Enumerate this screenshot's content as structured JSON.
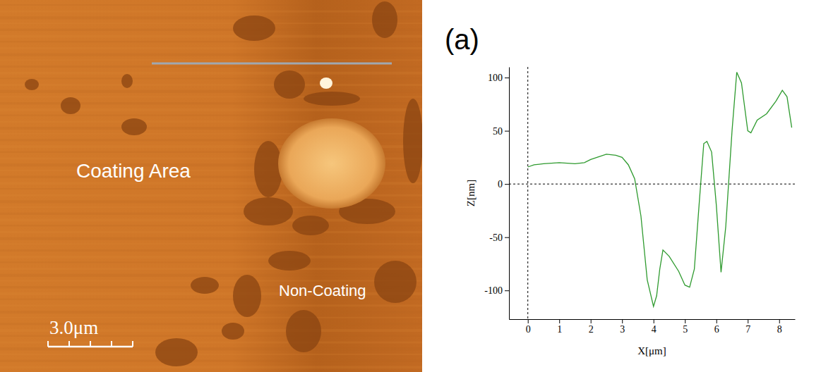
{
  "image": {
    "labels": [
      "Coating Area",
      "Non-Coating"
    ],
    "scale_bar": "3.0μm"
  },
  "chart_data": {
    "type": "line",
    "panel_label": "(a)",
    "x_label": "X[μm]",
    "y_label": "Z[nm]",
    "x": [
      0,
      0.2,
      0.5,
      1,
      1.5,
      1.8,
      2,
      2.2,
      2.5,
      2.8,
      3.0,
      3.2,
      3.4,
      3.6,
      3.8,
      4.0,
      4.1,
      4.2,
      4.3,
      4.5,
      4.8,
      5.0,
      5.15,
      5.3,
      5.45,
      5.6,
      5.7,
      5.85,
      6.0,
      6.15,
      6.3,
      6.5,
      6.65,
      6.8,
      7.0,
      7.1,
      7.3,
      7.6,
      7.9,
      8.1,
      8.25,
      8.4
    ],
    "values": [
      16,
      18,
      19,
      20,
      19,
      20,
      23,
      25,
      28,
      27,
      25,
      18,
      5,
      -30,
      -90,
      -115,
      -105,
      -80,
      -62,
      -68,
      -82,
      -95,
      -97,
      -80,
      -20,
      38,
      40,
      30,
      -20,
      -83,
      -40,
      50,
      105,
      95,
      50,
      48,
      60,
      66,
      78,
      88,
      82,
      53
    ],
    "color": "#2e9a2e",
    "xlim": [
      -0.6,
      8.5
    ],
    "ylim": [
      -127,
      110
    ],
    "xticks": [
      0,
      1,
      2,
      3,
      4,
      5,
      6,
      7,
      8
    ],
    "yticks": [
      -100,
      -50,
      0,
      50,
      100
    ],
    "grid": false
  }
}
